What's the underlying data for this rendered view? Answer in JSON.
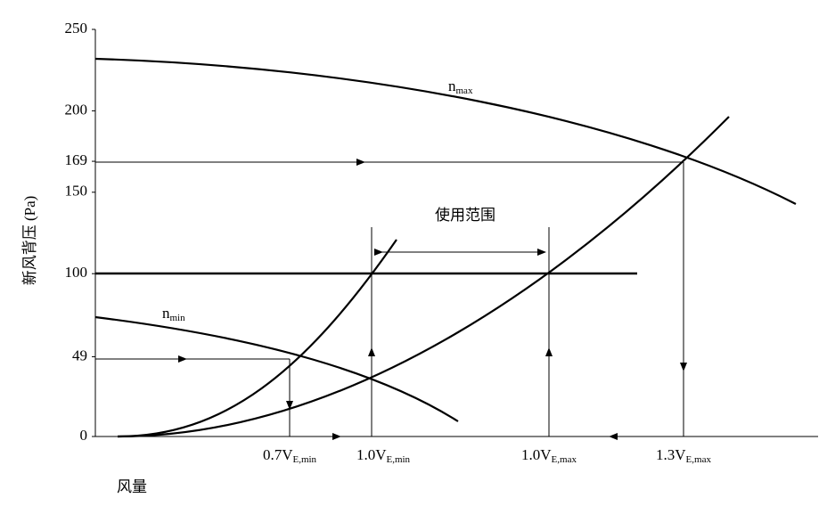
{
  "y_axis": {
    "label": "新风背压 (Pa)",
    "lim": [
      0,
      250
    ],
    "ticks": [
      0,
      49,
      100,
      150,
      169,
      200,
      250
    ]
  },
  "x_axis": {
    "label": "风量",
    "ticks": [
      {
        "main": "0.7V",
        "sub": "E,min"
      },
      {
        "main": "1.0V",
        "sub": "E,min"
      },
      {
        "main": "1.0V",
        "sub": "E,max"
      },
      {
        "main": "1.3V",
        "sub": "E,max"
      }
    ]
  },
  "curves": [
    {
      "main": "n",
      "sub": "max"
    },
    {
      "main": "n",
      "sub": "min"
    }
  ],
  "range_label": "使用范围"
}
